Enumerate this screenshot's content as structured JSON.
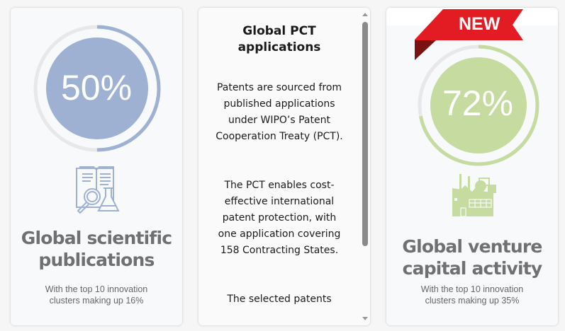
{
  "cards": [
    {
      "percent_label": "50%",
      "progress": 0.5,
      "accent": "#9eb1d3",
      "icon": "book-magnifier-flask-icon",
      "title_line1": "Global scientific",
      "title_line2": "publications",
      "sub_line1": "With the top 10 innovation",
      "sub_line2": "clusters making up 16%"
    },
    {
      "title_line1": "Global PCT",
      "title_line2": "applications",
      "paragraphs": [
        "Patents are sourced from published applications under WIPO’s Patent Cooperation Treaty (PCT).",
        "The PCT enables cost-effective international patent protection, with one application covering 158 Contracting States.",
        "The selected patents"
      ]
    },
    {
      "badge": "NEW",
      "badge_color": "#e31b23",
      "percent_label": "72%",
      "progress": 0.72,
      "accent": "#c5dba0",
      "icon": "factory-icon",
      "title_line1": "Global venture",
      "title_line2": "capital activity",
      "sub_line1": "With the top 10 innovation",
      "sub_line2": "clusters making up 35%"
    }
  ]
}
